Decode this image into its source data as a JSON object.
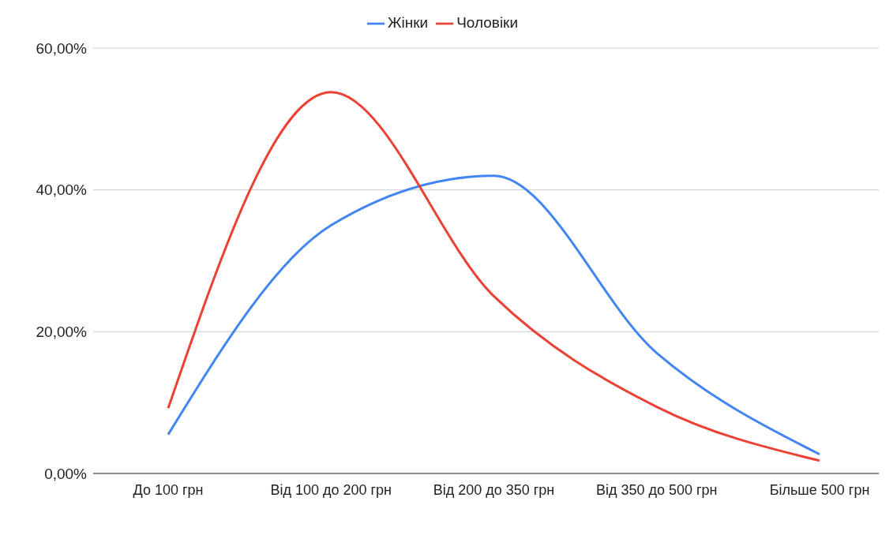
{
  "chart_data": {
    "type": "line",
    "categories": [
      "До 100 грн",
      "Від 100 до 200 грн",
      "Від 200 до 350 грн",
      "Від 350 до 500 грн",
      "Більше 500 грн"
    ],
    "series": [
      {
        "name": "Жінки",
        "color": "#4285f4",
        "values": [
          5.5,
          35,
          42,
          17,
          2.7
        ]
      },
      {
        "name": "Чоловіки",
        "color": "#ea4335",
        "values": [
          9.2,
          53.8,
          25,
          9.4,
          1.8
        ]
      }
    ],
    "ylim": [
      0,
      60
    ],
    "yticks": [
      {
        "value": 0,
        "label": "0,00%"
      },
      {
        "value": 20,
        "label": "20,00%"
      },
      {
        "value": 40,
        "label": "40,00%"
      },
      {
        "value": 60,
        "label": "60,00%"
      }
    ],
    "grid": "y",
    "legend": "top",
    "marker": "none",
    "line_style": "solid"
  }
}
